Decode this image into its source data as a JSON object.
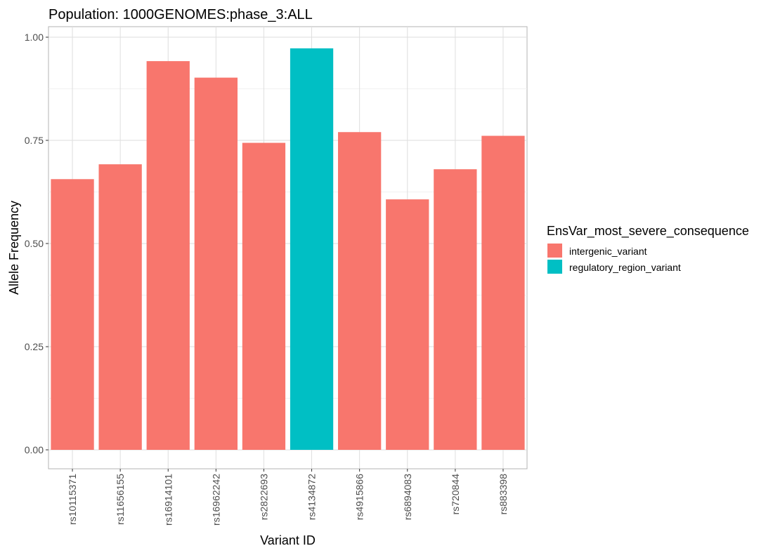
{
  "chart_data": {
    "type": "bar",
    "title": "Population: 1000GENOMES:phase_3:ALL",
    "xlabel": "Variant ID",
    "ylabel": "Allele Frequency",
    "ylim": [
      0,
      1.0
    ],
    "yticks": [
      0.0,
      0.25,
      0.5,
      0.75,
      1.0
    ],
    "ytick_labels": [
      "0.00",
      "0.25",
      "0.50",
      "0.75",
      "1.00"
    ],
    "categories": [
      "rs10115371",
      "rs11656155",
      "rs16914101",
      "rs16962242",
      "rs2822693",
      "rs4134872",
      "rs4915866",
      "rs6894083",
      "rs720844",
      "rs883398"
    ],
    "values": [
      0.656,
      0.692,
      0.942,
      0.902,
      0.744,
      0.973,
      0.77,
      0.607,
      0.68,
      0.761
    ],
    "groups": [
      "intergenic_variant",
      "intergenic_variant",
      "intergenic_variant",
      "intergenic_variant",
      "intergenic_variant",
      "regulatory_region_variant",
      "intergenic_variant",
      "intergenic_variant",
      "intergenic_variant",
      "intergenic_variant"
    ],
    "grid": true,
    "legend": {
      "title": "EnsVar_most_severe_consequence",
      "position": "right",
      "entries": [
        {
          "name": "intergenic_variant",
          "color": "#F8766D"
        },
        {
          "name": "regulatory_region_variant",
          "color": "#00BFC4"
        }
      ]
    }
  }
}
